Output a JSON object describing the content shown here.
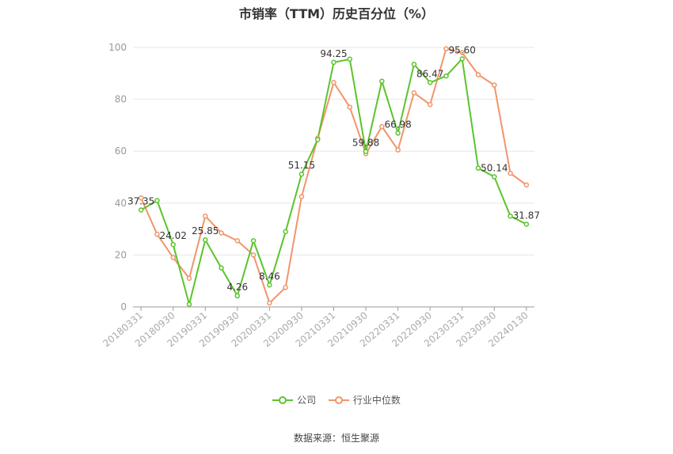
{
  "chart_data": {
    "type": "line",
    "title": "市销率（TTM）历史百分位（%）",
    "x_ticks": [
      "20180331",
      "20180930",
      "20190331",
      "20190930",
      "20200331",
      "20200930",
      "20210331",
      "20210930",
      "20220331",
      "20220930",
      "20230331",
      "20230930",
      "20240130"
    ],
    "ylim": [
      0,
      100
    ],
    "y_ticks": [
      0,
      20,
      40,
      60,
      80,
      100
    ],
    "grid": true,
    "legend_position": "bottom",
    "series": [
      {
        "name": "公司",
        "color": "#5bc42b",
        "values": [
          37.35,
          41,
          24.02,
          1,
          25.85,
          15,
          4.26,
          25.5,
          8.46,
          29,
          51.15,
          64.5,
          94.25,
          95.5,
          59.88,
          87,
          66.98,
          93.5,
          86.47,
          89,
          95.6,
          53.5,
          50.14,
          35,
          31.87
        ],
        "labels": [
          "37.35",
          "",
          "24.02",
          "",
          "25.85",
          "",
          "4.26",
          "",
          "8.46",
          "",
          "51.15",
          "",
          "94.25",
          "",
          "59.88",
          "",
          "66.98",
          "",
          "86.47",
          "",
          "95.60",
          "",
          "50.14",
          "",
          "31.87"
        ]
      },
      {
        "name": "行业中位数",
        "color": "#f0956a",
        "values": [
          42,
          28,
          19,
          11,
          35,
          28.5,
          25.5,
          20,
          1.5,
          7.5,
          42.5,
          65,
          86.5,
          77,
          59,
          69.5,
          60.5,
          82.5,
          78,
          99.5,
          98,
          89.5,
          85.5,
          51.5,
          47
        ],
        "labels": []
      }
    ]
  },
  "source_text": "数据来源：恒生聚源"
}
